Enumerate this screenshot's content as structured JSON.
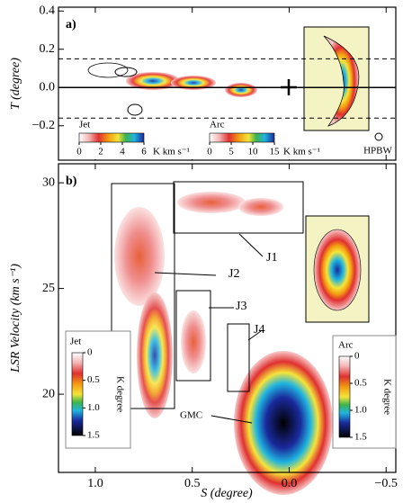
{
  "chart_data": [
    {
      "type": "contour",
      "panel_label": "a)",
      "ylabel": "T (degree)",
      "ylim": [
        -0.38,
        0.42
      ],
      "yticks": [
        0.4,
        0.2,
        {
          "value": 0,
          "label": "0.0"
        },
        {
          "value": -0.2,
          "label": "−0.2"
        }
      ],
      "lines": [
        {
          "value": 0.15,
          "style": "dashed"
        },
        {
          "value": -0.16,
          "style": "dashed"
        },
        {
          "value": 0,
          "style": "solid"
        }
      ],
      "colorbars": [
        {
          "name": "Jet",
          "ticks": [
            0,
            2,
            4,
            6
          ],
          "unit": "K km s⁻¹"
        },
        {
          "name": "Arc",
          "ticks": [
            0,
            5,
            10,
            15
          ],
          "unit": "K km s⁻¹"
        }
      ],
      "annotations": [
        "HPBW"
      ]
    },
    {
      "type": "contour",
      "panel_label": "b)",
      "xlabel": "S (degree)",
      "ylabel": "LSR Velocity (km s⁻¹)",
      "xlim": [
        1.19,
        -0.55
      ],
      "xticks": [
        {
          "value": 1,
          "label": "1.0"
        },
        0.5,
        {
          "value": 0,
          "label": "0.0"
        },
        {
          "value": -0.5,
          "label": "−0.5"
        }
      ],
      "ylim": [
        16.3,
        30.9
      ],
      "yticks": [
        30,
        25,
        20
      ],
      "colorbars": [
        {
          "name": "Jet",
          "ticks": [
            0,
            0.5,
            {
              "value": 1,
              "label": "1.0"
            },
            1.5
          ],
          "unit": "K degree"
        },
        {
          "name": "Arc",
          "ticks": [
            0,
            0.5,
            {
              "value": 1,
              "label": "1.0"
            },
            1.5
          ],
          "unit": "K degree"
        }
      ],
      "annotations": [
        "J1",
        "J2",
        "J3",
        "J4",
        "GMC"
      ]
    }
  ]
}
